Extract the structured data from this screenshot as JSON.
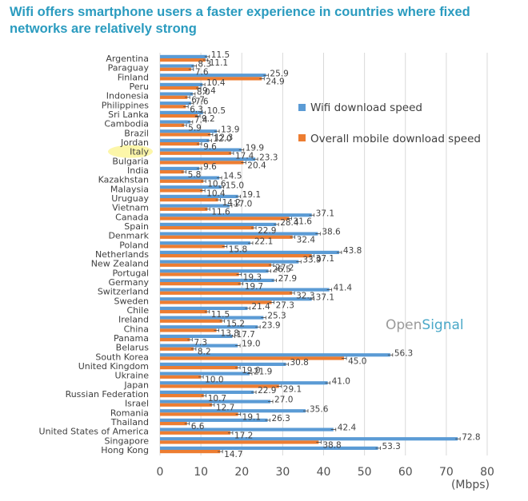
{
  "title": "Wifi offers smartphone users a faster experience in countries where fixed networks are relatively strong",
  "brand": {
    "part1": "Open",
    "part2": "Signal",
    "color1": "#9a9a9a",
    "color2": "#4aa8c8"
  },
  "chart_data": {
    "type": "bar",
    "orientation": "horizontal",
    "title": "Wifi offers smartphone users a faster experience in countries where fixed networks are relatively strong",
    "xlabel": "(Mbps)",
    "ylabel": "",
    "xlim": [
      0,
      80
    ],
    "xticks": [
      0,
      10,
      20,
      30,
      40,
      50,
      60,
      70,
      80
    ],
    "grid": true,
    "legend_position": "top-right",
    "highlighted_category": "Italy",
    "categories": [
      "Argentina",
      "Paraguay",
      "Finland",
      "Peru",
      "Indonesia",
      "Philippines",
      "Sri Lanka",
      "Cambodia",
      "Brazil",
      "Jordan",
      "Italy",
      "Bulgaria",
      "India",
      "Kazakhstan",
      "Malaysia",
      "Uruguay",
      "Vietnam",
      "Canada",
      "Spain",
      "Denmark",
      "Poland",
      "Netherlands",
      "New Zealand",
      "Portugal",
      "Germany",
      "Switzerland",
      "Sweden",
      "Chile",
      "Ireland",
      "China",
      "Panama",
      "Belarus",
      "South Korea",
      "United Kingdom",
      "Ukraine",
      "Japan",
      "Russian Federation",
      "Israel",
      "Romania",
      "Thailand",
      "United States of America",
      "Singapore",
      "Hong Kong"
    ],
    "series": [
      {
        "name": "Wifi download speed",
        "color": "#5b9bd5",
        "values": [
          11.5,
          8.3,
          25.9,
          10.4,
          8.0,
          7.6,
          10.5,
          7.4,
          13.9,
          12.0,
          19.9,
          23.3,
          9.6,
          14.5,
          15.0,
          19.1,
          17.0,
          37.1,
          28.4,
          38.6,
          22.1,
          43.8,
          33.9,
          26.5,
          27.9,
          41.4,
          37.1,
          21.4,
          25.3,
          23.9,
          17.7,
          19.0,
          56.3,
          30.8,
          21.9,
          41.0,
          22.9,
          27.0,
          35.6,
          26.3,
          42.4,
          72.8,
          53.3
        ]
      },
      {
        "name": "Overall mobile download speed",
        "color": "#ed7d31",
        "values": [
          11.1,
          7.6,
          24.9,
          9.4,
          6.7,
          6.3,
          9.2,
          5.9,
          12.3,
          9.6,
          17.4,
          20.4,
          5.8,
          10.6,
          10.4,
          14.2,
          11.6,
          31.6,
          22.9,
          32.4,
          15.8,
          37.1,
          27.2,
          19.3,
          19.7,
          32.3,
          27.3,
          11.5,
          15.2,
          13.8,
          7.3,
          8.2,
          45.0,
          19.0,
          10.0,
          29.1,
          10.7,
          12.7,
          19.1,
          6.6,
          17.2,
          38.8,
          14.7
        ]
      }
    ]
  }
}
